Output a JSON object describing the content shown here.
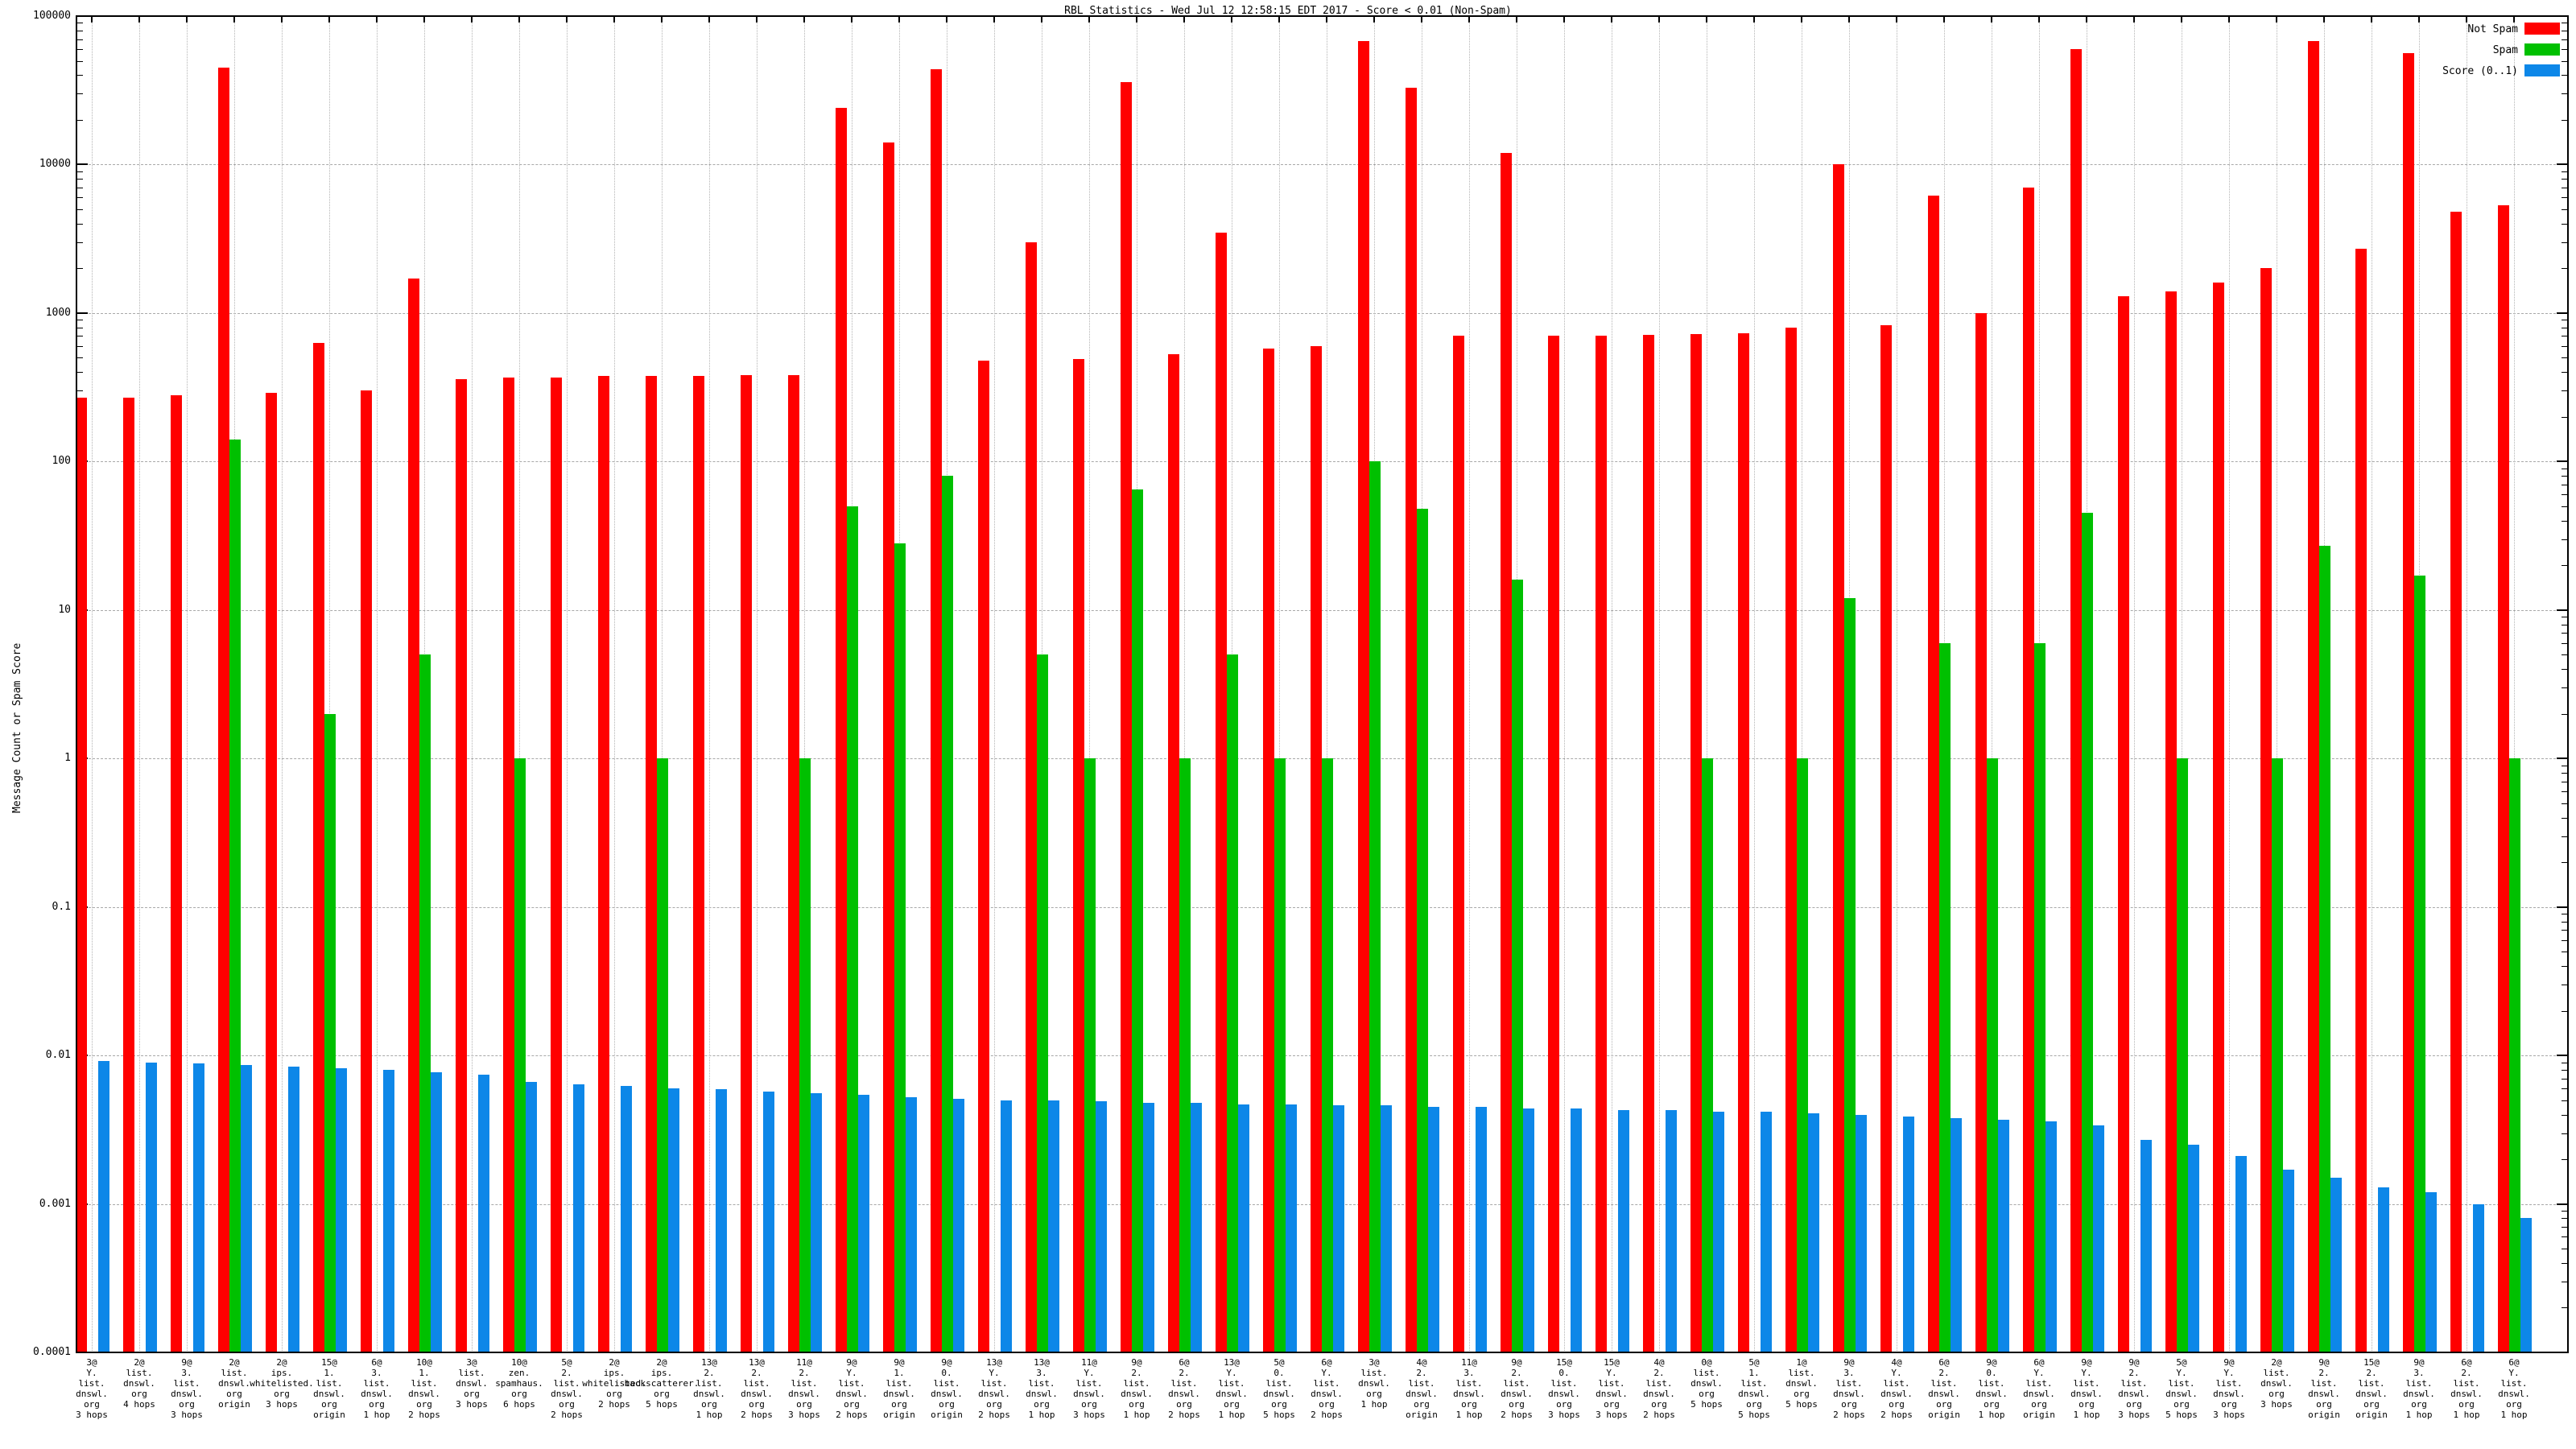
{
  "title": "RBL Statistics - Wed Jul 12 12:58:15 EDT 2017 - Score < 0.01 (Non-Spam)",
  "y_axis": {
    "label": "Message Count or Spam Score",
    "ticks": [
      "100000",
      "10000",
      "1000",
      "100",
      "10",
      "1",
      "0.1",
      "0.01",
      "0.001",
      "0.0001"
    ]
  },
  "legend": {
    "items": [
      {
        "label": "Not Spam",
        "color": "#ff0000"
      },
      {
        "label": "Spam",
        "color": "#00c000"
      },
      {
        "label": "Score (0..1)",
        "color": "#0d87e8"
      }
    ]
  },
  "chart_data": {
    "type": "bar",
    "y_scale": "log",
    "ylim": [
      0.0001,
      100000
    ],
    "grid": true,
    "legend_position": "top-right",
    "title": "RBL Statistics - Wed Jul 12 12:58:15 EDT 2017 - Score < 0.01 (Non-Spam)",
    "xlabel": "",
    "ylabel": "Message Count or Spam Score",
    "series_names": [
      "Not Spam",
      "Spam",
      "Score (0..1)"
    ],
    "series_colors": [
      "#ff0000",
      "#00c000",
      "#0d87e8"
    ],
    "groups": [
      {
        "label": "3@\nY.\nlist.\ndnswl.\norg\n3 hops",
        "not_spam": 270,
        "spam": 0,
        "score": 0.0092
      },
      {
        "label": "2@\nlist.\ndnswl.\norg\n4 hops",
        "not_spam": 270,
        "spam": 0,
        "score": 0.009
      },
      {
        "label": "9@\n3.\nlist.\ndnswl.\norg\n3 hops",
        "not_spam": 280,
        "spam": 0,
        "score": 0.0088
      },
      {
        "label": "2@\nlist.\ndnswl.\norg\norigin",
        "not_spam": 45000,
        "spam": 140,
        "score": 0.0086
      },
      {
        "label": "2@\nips.\nwhitelisted.\norg\n3 hops",
        "not_spam": 290,
        "spam": 0,
        "score": 0.0084
      },
      {
        "label": "15@\n1.\nlist.\ndnswl.\norg\norigin",
        "not_spam": 630,
        "spam": 2,
        "score": 0.0082
      },
      {
        "label": "6@\n3.\nlist.\ndnswl.\norg\n1 hop",
        "not_spam": 300,
        "spam": 0,
        "score": 0.008
      },
      {
        "label": "10@\n1.\nlist.\ndnswl.\norg\n2 hops",
        "not_spam": 1700,
        "spam": 5,
        "score": 0.0077
      },
      {
        "label": "3@\nlist.\ndnswl.\norg\n3 hops",
        "not_spam": 360,
        "spam": 0,
        "score": 0.0074
      },
      {
        "label": "10@\nzen.\nspamhaus.\norg\n6 hops",
        "not_spam": 370,
        "spam": 1,
        "score": 0.0066
      },
      {
        "label": "5@\n2.\nlist.\ndnswl.\norg\n2 hops",
        "not_spam": 370,
        "spam": 0,
        "score": 0.0064
      },
      {
        "label": "2@\nips.\nwhitelisted.\norg\n2 hops",
        "not_spam": 375,
        "spam": 0,
        "score": 0.0062
      },
      {
        "label": "2@\nips.\nbackscatterer.\norg\n5 hops",
        "not_spam": 378,
        "spam": 1,
        "score": 0.006
      },
      {
        "label": "13@\n2.\nlist.\ndnswl.\norg\n1 hop",
        "not_spam": 377,
        "spam": 0,
        "score": 0.0059
      },
      {
        "label": "13@\n2.\nlist.\ndnswl.\norg\n2 hops",
        "not_spam": 380,
        "spam": 0,
        "score": 0.0057
      },
      {
        "label": "11@\n2.\nlist.\ndnswl.\norg\n3 hops",
        "not_spam": 382,
        "spam": 1,
        "score": 0.0056
      },
      {
        "label": "9@\nY.\nlist.\ndnswl.\norg\n2 hops",
        "not_spam": 24000,
        "spam": 50,
        "score": 0.0054
      },
      {
        "label": "9@\n1.\nlist.\ndnswl.\norg\norigin",
        "not_spam": 14000,
        "spam": 28,
        "score": 0.0052
      },
      {
        "label": "9@\n0.\nlist.\ndnswl.\norg\norigin",
        "not_spam": 44000,
        "spam": 80,
        "score": 0.0051
      },
      {
        "label": "13@\nY.\nlist.\ndnswl.\norg\n2 hops",
        "not_spam": 480,
        "spam": 0,
        "score": 0.005
      },
      {
        "label": "13@\n3.\nlist.\ndnswl.\norg\n1 hop",
        "not_spam": 3000,
        "spam": 5,
        "score": 0.005
      },
      {
        "label": "11@\nY.\nlist.\ndnswl.\norg\n3 hops",
        "not_spam": 490,
        "spam": 1,
        "score": 0.0049
      },
      {
        "label": "9@\n2.\nlist.\ndnswl.\norg\n1 hop",
        "not_spam": 36000,
        "spam": 65,
        "score": 0.0048
      },
      {
        "label": "6@\n2.\nlist.\ndnswl.\norg\n2 hops",
        "not_spam": 530,
        "spam": 1,
        "score": 0.0048
      },
      {
        "label": "13@\nY.\nlist.\ndnswl.\norg\n1 hop",
        "not_spam": 3500,
        "spam": 5,
        "score": 0.0047
      },
      {
        "label": "5@\n0.\nlist.\ndnswl.\norg\n5 hops",
        "not_spam": 580,
        "spam": 1,
        "score": 0.0047
      },
      {
        "label": "6@\nY.\nlist.\ndnswl.\norg\n2 hops",
        "not_spam": 600,
        "spam": 1,
        "score": 0.0046
      },
      {
        "label": "3@\nlist.\ndnswl.\norg\n1 hop",
        "not_spam": 68000,
        "spam": 100,
        "score": 0.0046
      },
      {
        "label": "4@\n2.\nlist.\ndnswl.\norg\norigin",
        "not_spam": 33000,
        "spam": 48,
        "score": 0.0045
      },
      {
        "label": "11@\n3.\nlist.\ndnswl.\norg\n1 hop",
        "not_spam": 700,
        "spam": 0,
        "score": 0.0045
      },
      {
        "label": "9@\n2.\nlist.\ndnswl.\norg\n2 hops",
        "not_spam": 12000,
        "spam": 16,
        "score": 0.0044
      },
      {
        "label": "15@\n0.\nlist.\ndnswl.\norg\n3 hops",
        "not_spam": 700,
        "spam": 0,
        "score": 0.0044
      },
      {
        "label": "15@\nY.\nlist.\ndnswl.\norg\n3 hops",
        "not_spam": 700,
        "spam": 0,
        "score": 0.0043
      },
      {
        "label": "4@\n2.\nlist.\ndnswl.\norg\n2 hops",
        "not_spam": 710,
        "spam": 0,
        "score": 0.0043
      },
      {
        "label": "0@\nlist.\ndnswl.\norg\n5 hops",
        "not_spam": 720,
        "spam": 1,
        "score": 0.0042
      },
      {
        "label": "5@\n1.\nlist.\ndnswl.\norg\n5 hops",
        "not_spam": 730,
        "spam": 0,
        "score": 0.0042
      },
      {
        "label": "1@\nlist.\ndnswl.\norg\n5 hops",
        "not_spam": 800,
        "spam": 1,
        "score": 0.0041
      },
      {
        "label": "9@\n3.\nlist.\ndnswl.\norg\n2 hops",
        "not_spam": 10000,
        "spam": 12,
        "score": 0.004
      },
      {
        "label": "4@\nY.\nlist.\ndnswl.\norg\n2 hops",
        "not_spam": 830,
        "spam": 0,
        "score": 0.0039
      },
      {
        "label": "6@\n2.\nlist.\ndnswl.\norg\norigin",
        "not_spam": 6200,
        "spam": 6,
        "score": 0.0038
      },
      {
        "label": "9@\n0.\nlist.\ndnswl.\norg\n1 hop",
        "not_spam": 1000,
        "spam": 1,
        "score": 0.0037
      },
      {
        "label": "6@\nY.\nlist.\ndnswl.\norg\norigin",
        "not_spam": 7000,
        "spam": 6,
        "score": 0.0036
      },
      {
        "label": "9@\nY.\nlist.\ndnswl.\norg\n1 hop",
        "not_spam": 60000,
        "spam": 45,
        "score": 0.0034
      },
      {
        "label": "9@\n2.\nlist.\ndnswl.\norg\n3 hops",
        "not_spam": 1300,
        "spam": 0,
        "score": 0.0027
      },
      {
        "label": "5@\nY.\nlist.\ndnswl.\norg\n5 hops",
        "not_spam": 1400,
        "spam": 1,
        "score": 0.0025
      },
      {
        "label": "9@\nY.\nlist.\ndnswl.\norg\n3 hops",
        "not_spam": 1600,
        "spam": 0,
        "score": 0.0021
      },
      {
        "label": "2@\nlist.\ndnswl.\norg\n3 hops",
        "not_spam": 2000,
        "spam": 1,
        "score": 0.0017
      },
      {
        "label": "9@\n2.\nlist.\ndnswl.\norg\norigin",
        "not_spam": 68000,
        "spam": 27,
        "score": 0.0015
      },
      {
        "label": "15@\n2.\nlist.\ndnswl.\norg\norigin",
        "not_spam": 2700,
        "spam": 0,
        "score": 0.0013
      },
      {
        "label": "9@\n3.\nlist.\ndnswl.\norg\n1 hop",
        "not_spam": 56000,
        "spam": 17,
        "score": 0.0012
      },
      {
        "label": "6@\n2.\nlist.\ndnswl.\norg\n1 hop",
        "not_spam": 4800,
        "spam": 0,
        "score": 0.001
      },
      {
        "label": "6@\nY.\nlist.\ndnswl.\norg\n1 hop",
        "not_spam": 5300,
        "spam": 1,
        "score": 0.0008
      }
    ]
  }
}
